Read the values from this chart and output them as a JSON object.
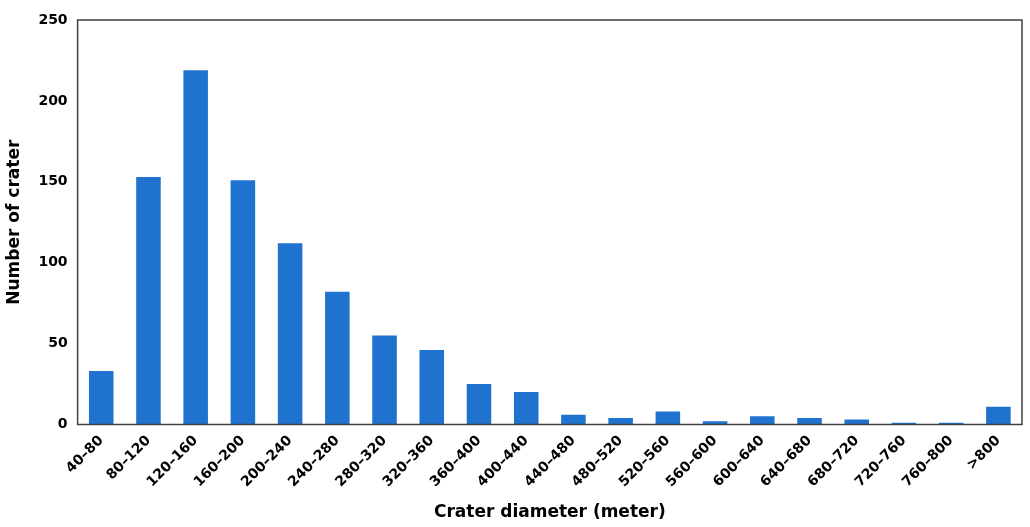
{
  "chart_data": {
    "type": "bar",
    "xlabel": "Crater diameter (meter)",
    "ylabel": "Number of crater",
    "categories": [
      "40–80",
      "80–120",
      "120–160",
      "160–200",
      "200–240",
      "240–280",
      "280–320",
      "320–360",
      "360–400",
      "400–440",
      "440–480",
      "480–520",
      "520–560",
      "560–600",
      "600–640",
      "640–680",
      "680–720",
      "720–760",
      "760–800",
      ">800"
    ],
    "values": [
      33,
      153,
      219,
      151,
      112,
      82,
      55,
      46,
      25,
      20,
      6,
      4,
      8,
      2,
      5,
      4,
      3,
      1,
      1,
      11
    ],
    "color": "#1f73ce",
    "ylim": [
      0,
      250
    ],
    "yticks": [
      0,
      50,
      100,
      150,
      200,
      250
    ],
    "grid": false,
    "legend": false
  }
}
